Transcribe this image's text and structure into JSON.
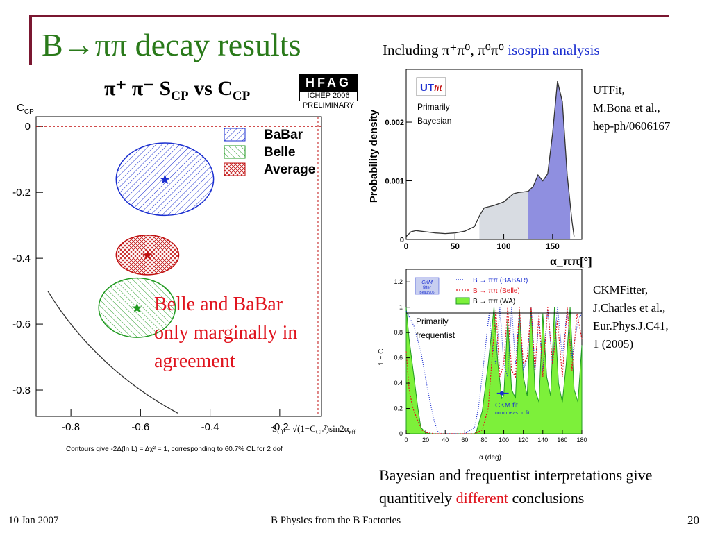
{
  "slide": {
    "title": "B→ππ decay results",
    "including_text": "Including π⁺π⁰, π⁰π⁰",
    "including_link": "isospin analysis",
    "footer_date": "10 Jan 2007",
    "footer_title": "B Physics from the B Factories",
    "page_number": "20"
  },
  "hfag": {
    "title": "π⁺ π⁻ S",
    "title_sub1": "CP",
    "title_mid": " vs C",
    "title_sub2": "CP",
    "badge": "HFAG",
    "conference": "ICHEP 2006",
    "status": "PRELIMINARY",
    "y_axis_label": "C",
    "y_axis_sub": "CP",
    "legend": [
      "BaBar",
      "Belle",
      "Average"
    ],
    "annotation": "Belle and BaBar only marginally in agreement",
    "formula": "S",
    "formula_sub": "CP",
    "formula_rest": "= √(1−C",
    "formula_sub2": "CP",
    "formula_rest2": "²)sin2α",
    "formula_sub3": "eff",
    "contour_note": "Contours give -2Δ(ln L) = Δχ² = 1, corresponding to 60.7% CL for 2 dof"
  },
  "utfit": {
    "logo": "UT",
    "logo_fit": "fit",
    "method": "Primarily Bayesian",
    "method_line1": "Primarily",
    "method_line2": "Bayesian",
    "credit": [
      "UTFit,",
      "M.Bona et al.,",
      "hep-ph/0606167"
    ]
  },
  "ckmfitter": {
    "method_line1": "Primarily",
    "method_line2": "frequentist",
    "logo_top": "CKM",
    "logo_mid": "fitter",
    "logo_bot": "Beauty06",
    "legend": [
      "B → ππ (BABAR)",
      "B → ππ (Belle)",
      "B → ππ (WA)"
    ],
    "fit_label": "CKM fit",
    "fit_sub": "no α meas. in fit",
    "credit": [
      "CKMFitter,",
      "J.Charles et al.,",
      "Eur.Phys.J.C41,",
      "1 (2005)"
    ]
  },
  "conclusion": {
    "part1": "Bayesian and frequentist interpretations give quantitively ",
    "highlight": "different",
    "part2": " conclusions"
  },
  "colors": {
    "title_green": "#2a7a1a",
    "rule": "#7a1630",
    "red": "#e0141e",
    "babar_blue": "#1a2ed0",
    "belle_green": "#1f9a1f",
    "utfit_band": "#8f8fe0",
    "wa_green": "#7df03a"
  },
  "chart_data": [
    {
      "type": "scatter",
      "title": "π⁺ π⁻ S_CP vs C_CP",
      "xlabel": "",
      "ylabel": "C_CP",
      "xlim": [
        -0.9,
        -0.08
      ],
      "ylim": [
        -0.88,
        0.03
      ],
      "x_ticks": [
        "-0.8",
        "-0.6",
        "-0.4",
        "-0.2"
      ],
      "y_ticks": [
        "0",
        "-0.2",
        "-0.4",
        "-0.6",
        "-0.8"
      ],
      "series": [
        {
          "name": "BaBar",
          "x": [
            -0.53
          ],
          "y": [
            -0.16
          ],
          "sx": 0.14,
          "sy": 0.11
        },
        {
          "name": "Belle",
          "x": [
            -0.61
          ],
          "y": [
            -0.55
          ],
          "sx": 0.11,
          "sy": 0.09
        },
        {
          "name": "Average",
          "x": [
            -0.58
          ],
          "y": [
            -0.39
          ],
          "sx": 0.09,
          "sy": 0.06
        }
      ],
      "legend_position": "top-right"
    },
    {
      "type": "area",
      "title": "",
      "xlabel": "α_ππ[°]",
      "ylabel": "Probability density",
      "xlim": [
        0,
        180
      ],
      "ylim": [
        0,
        0.0029
      ],
      "x_ticks": [
        "0",
        "50",
        "100",
        "150"
      ],
      "y_ticks": [
        "0",
        "0.001",
        "0.002"
      ],
      "x": [
        0,
        5,
        10,
        20,
        30,
        40,
        50,
        60,
        70,
        75,
        80,
        90,
        100,
        110,
        115,
        120,
        125,
        130,
        135,
        140,
        145,
        150,
        155,
        160,
        165,
        170,
        172
      ],
      "y": [
        5e-05,
        0.00013,
        0.00015,
        0.00013,
        0.00011,
        0.0001,
        0.00011,
        0.00014,
        0.00022,
        0.0004,
        0.00054,
        0.00058,
        0.00064,
        0.00078,
        0.0008,
        0.00081,
        0.00082,
        0.0009,
        0.0011,
        0.001,
        0.00112,
        0.0018,
        0.0027,
        0.00235,
        0.0011,
        0.0003,
        5e-05
      ],
      "light_band": [
        75,
        125
      ],
      "dark_band": [
        125,
        168
      ]
    },
    {
      "type": "line",
      "title": "",
      "xlabel": "α   (deg)",
      "ylabel": "1 − CL",
      "xlim": [
        0,
        180
      ],
      "ylim": [
        0,
        1.3
      ],
      "x_ticks": [
        "0",
        "20",
        "40",
        "60",
        "80",
        "100",
        "120",
        "140",
        "160",
        "180"
      ],
      "y_ticks": [
        "0",
        "0.2",
        "0.4",
        "0.6",
        "0.8",
        "1",
        "1.2"
      ],
      "series": [
        {
          "name": "B → ππ (BABAR)",
          "x": [
            0,
            8,
            15,
            22,
            28,
            32,
            37,
            45,
            60,
            70,
            74,
            80,
            85,
            88,
            92,
            96,
            100,
            104,
            108,
            112,
            116,
            120,
            124,
            128,
            132,
            136,
            140,
            145,
            150,
            155,
            160,
            165,
            170,
            176,
            180
          ],
          "y": [
            0.97,
            0.85,
            0.65,
            0.35,
            0.12,
            0.02,
            0,
            0,
            0,
            0.05,
            0.2,
            0.6,
            0.95,
            0.7,
            0.55,
            1.0,
            0.55,
            0.45,
            1.0,
            0.55,
            0.95,
            0.5,
            0.6,
            1.0,
            0.5,
            0.9,
            0.5,
            0.98,
            0.55,
            1.0,
            0.6,
            0.98,
            0.6,
            0.9,
            0.95
          ]
        },
        {
          "name": "B → ππ (Belle)",
          "x": [
            0,
            3,
            7,
            12,
            16,
            20,
            30,
            70,
            78,
            84,
            88,
            92,
            96,
            100,
            104,
            108,
            112,
            116,
            120,
            124,
            128,
            132,
            136,
            140,
            145,
            150,
            155,
            160,
            165,
            170,
            175,
            180
          ],
          "y": [
            0.65,
            0.35,
            0.2,
            0.1,
            0.03,
            0.01,
            0,
            0,
            0.03,
            0.2,
            0.6,
            0.98,
            0.45,
            0.55,
            1.0,
            0.5,
            0.45,
            1.0,
            0.55,
            0.6,
            1.0,
            0.5,
            0.95,
            0.45,
            1.0,
            0.55,
            0.9,
            0.45,
            1.0,
            0.5,
            0.95,
            0.75
          ]
        },
        {
          "name": "B → ππ (WA)",
          "x": [
            0,
            3,
            8,
            12,
            15,
            20,
            25,
            70,
            72,
            78,
            84,
            90,
            94,
            98,
            100,
            104,
            108,
            112,
            116,
            120,
            124,
            128,
            132,
            136,
            140,
            144,
            148,
            152,
            156,
            160,
            164,
            168,
            172,
            176,
            180
          ],
          "y": [
            1.0,
            0.75,
            0.45,
            0.2,
            0.05,
            0.01,
            0,
            0,
            0.02,
            0.18,
            0.55,
            1.0,
            0.55,
            0.28,
            0.3,
            0.9,
            0.35,
            0.28,
            0.98,
            0.45,
            0.3,
            1.0,
            0.35,
            0.25,
            0.95,
            0.45,
            0.3,
            1.0,
            0.4,
            0.25,
            0.55,
            1.0,
            0.35,
            0.25,
            0.7
          ]
        },
        {
          "name": "CKM fit",
          "x": [
            93,
            98,
            105
          ],
          "y": [
            0.32,
            0.32,
            0.32
          ]
        }
      ],
      "legend_position": "top"
    }
  ]
}
